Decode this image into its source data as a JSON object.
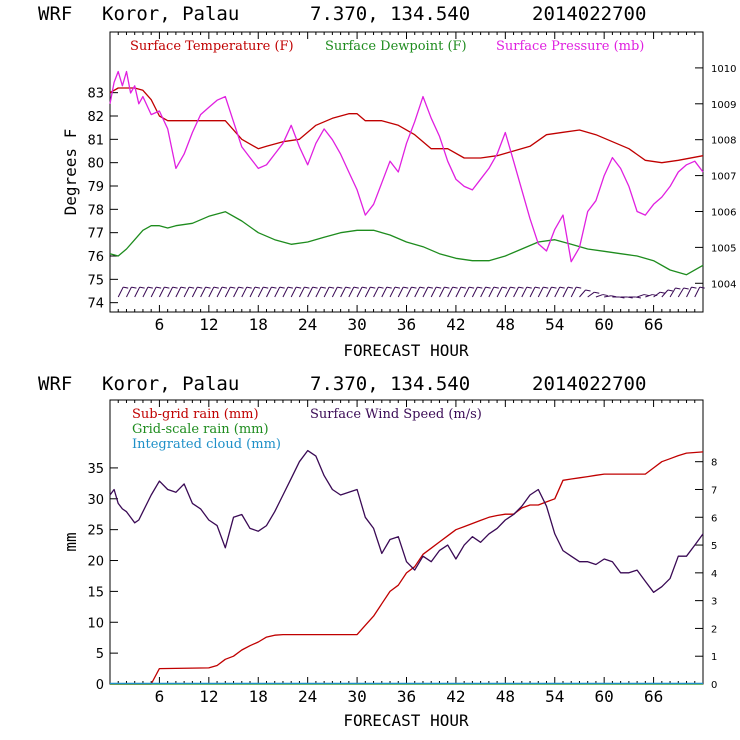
{
  "colors": {
    "temp": "#c00000",
    "dew": "#1e8c1e",
    "pres": "#e020e0",
    "subrain": "#c00000",
    "gridrain": "#1e8c1e",
    "cloud": "#1e90c8",
    "wind": "#3a0a55",
    "barb": "#3a0a55"
  },
  "chart_data": [
    {
      "type": "line",
      "header": {
        "model": "WRF",
        "place": "Koror, Palau",
        "coords": "7.370, 134.540",
        "run": "2014022700"
      },
      "xlabel": "FORECAST HOUR",
      "ylabel": "Degrees F",
      "xlim": [
        0,
        72
      ],
      "xticks": [
        "6",
        "12",
        "18",
        "24",
        "30",
        "36",
        "42",
        "48",
        "54",
        "60",
        "66"
      ],
      "ylim": [
        73.6,
        85.6
      ],
      "yticks": [
        "74",
        "75",
        "76",
        "77",
        "78",
        "79",
        "80",
        "81",
        "82",
        "83"
      ],
      "y2lim": [
        1003.2,
        1011.0
      ],
      "y2ticks": [
        "1004",
        "1005",
        "1006",
        "1007",
        "1008",
        "1009",
        "1010"
      ],
      "legend": [
        "Surface Temperature (F)",
        "Surface Dewpoint (F)",
        "Surface Pressure (mb)"
      ],
      "series": [
        {
          "name": "Surface Temperature (F)",
          "axis": "left",
          "x": [
            0,
            1,
            2,
            3,
            4,
            5,
            6,
            7,
            8,
            10,
            12,
            14,
            16,
            18,
            19,
            21,
            23,
            25,
            27,
            29,
            30,
            31,
            33,
            35,
            37,
            39,
            41,
            43,
            45,
            47,
            49,
            51,
            53,
            55,
            57,
            59,
            61,
            63,
            65,
            67,
            69,
            72
          ],
          "y": [
            83.0,
            83.2,
            83.2,
            83.2,
            83.1,
            82.7,
            82.0,
            81.8,
            81.8,
            81.8,
            81.8,
            81.8,
            81.0,
            80.6,
            80.7,
            80.9,
            81.0,
            81.6,
            81.9,
            82.1,
            82.1,
            81.8,
            81.8,
            81.6,
            81.2,
            80.6,
            80.6,
            80.2,
            80.2,
            80.3,
            80.5,
            80.7,
            81.2,
            81.3,
            81.4,
            81.2,
            80.9,
            80.6,
            80.1,
            80.0,
            80.1,
            80.3
          ]
        },
        {
          "name": "Surface Dewpoint (F)",
          "axis": "left",
          "x": [
            0,
            1,
            2,
            3,
            4,
            5,
            6,
            7,
            8,
            10,
            12,
            14,
            16,
            18,
            20,
            22,
            24,
            26,
            28,
            30,
            32,
            34,
            36,
            38,
            40,
            42,
            44,
            46,
            48,
            50,
            52,
            54,
            56,
            58,
            60,
            62,
            64,
            66,
            68,
            70,
            72
          ],
          "y": [
            76.1,
            76.0,
            76.3,
            76.7,
            77.1,
            77.3,
            77.3,
            77.2,
            77.3,
            77.4,
            77.7,
            77.9,
            77.5,
            77.0,
            76.7,
            76.5,
            76.6,
            76.8,
            77.0,
            77.1,
            77.1,
            76.9,
            76.6,
            76.4,
            76.1,
            75.9,
            75.8,
            75.8,
            76.0,
            76.3,
            76.6,
            76.7,
            76.5,
            76.3,
            76.2,
            76.1,
            76.0,
            75.8,
            75.4,
            75.2,
            75.6
          ]
        },
        {
          "name": "Surface Pressure (mb)",
          "axis": "right",
          "x": [
            0,
            0.5,
            1,
            1.5,
            2,
            2.5,
            3,
            3.5,
            4,
            5,
            6,
            7,
            8,
            9,
            10,
            11,
            12,
            13,
            14,
            15,
            16,
            17,
            18,
            19,
            20,
            21,
            22,
            23,
            24,
            25,
            26,
            27,
            28,
            29,
            30,
            31,
            32,
            33,
            34,
            35,
            36,
            37,
            38,
            39,
            40,
            41,
            42,
            43,
            44,
            45,
            46,
            47,
            48,
            49,
            50,
            51,
            52,
            53,
            54,
            55,
            56,
            57,
            58,
            59,
            60,
            61,
            62,
            63,
            64,
            65,
            66,
            67,
            68,
            69,
            70,
            71,
            72
          ],
          "y": [
            1009.0,
            1009.6,
            1009.9,
            1009.5,
            1009.9,
            1009.3,
            1009.5,
            1009.0,
            1009.2,
            1008.7,
            1008.8,
            1008.3,
            1007.2,
            1007.6,
            1008.2,
            1008.7,
            1008.9,
            1009.1,
            1009.2,
            1008.5,
            1007.8,
            1007.5,
            1007.2,
            1007.3,
            1007.6,
            1007.9,
            1008.4,
            1007.8,
            1007.3,
            1007.9,
            1008.3,
            1008.0,
            1007.6,
            1007.1,
            1006.6,
            1005.9,
            1006.2,
            1006.8,
            1007.4,
            1007.1,
            1007.9,
            1008.5,
            1009.2,
            1008.6,
            1008.1,
            1007.4,
            1006.9,
            1006.7,
            1006.6,
            1006.9,
            1007.2,
            1007.6,
            1008.2,
            1007.4,
            1006.6,
            1005.8,
            1005.1,
            1004.9,
            1005.5,
            1005.9,
            1004.6,
            1005.0,
            1006.0,
            1006.3,
            1007.0,
            1007.5,
            1007.2,
            1006.7,
            1006.0,
            1005.9,
            1006.2,
            1006.4,
            1006.7,
            1007.1,
            1007.3,
            1007.4,
            1007.1
          ]
        }
      ],
      "barbs": {
        "hours": [
          1,
          2,
          3,
          4,
          5,
          6,
          7,
          8,
          9,
          10,
          11,
          12,
          13,
          14,
          15,
          16,
          17,
          18,
          19,
          20,
          21,
          22,
          23,
          24,
          25,
          26,
          27,
          28,
          29,
          30,
          31,
          32,
          33,
          34,
          35,
          36,
          37,
          38,
          39,
          40,
          41,
          42,
          43,
          44,
          45,
          46,
          47,
          48,
          49,
          50,
          51,
          52,
          53,
          54,
          55,
          56,
          57,
          58,
          59,
          60,
          61,
          62,
          63,
          64,
          65,
          66,
          67,
          68,
          69,
          70,
          71
        ],
        "dir_deg": [
          45,
          45,
          45,
          45,
          45,
          45,
          45,
          45,
          45,
          45,
          45,
          45,
          45,
          45,
          45,
          45,
          45,
          45,
          45,
          45,
          45,
          45,
          45,
          45,
          45,
          45,
          45,
          45,
          45,
          45,
          45,
          45,
          45,
          45,
          45,
          45,
          45,
          45,
          45,
          45,
          45,
          45,
          45,
          45,
          45,
          45,
          45,
          45,
          45,
          45,
          45,
          45,
          45,
          45,
          45,
          45,
          60,
          70,
          80,
          85,
          90,
          90,
          90,
          80,
          80,
          70,
          60,
          50,
          50,
          45,
          45
        ]
      }
    },
    {
      "type": "line",
      "header": {
        "model": "WRF",
        "place": "Koror, Palau",
        "coords": "7.370, 134.540",
        "run": "2014022700"
      },
      "xlabel": "FORECAST HOUR",
      "ylabel": "mm",
      "xlim": [
        0,
        72
      ],
      "xticks": [
        "6",
        "12",
        "18",
        "24",
        "30",
        "36",
        "42",
        "48",
        "54",
        "60",
        "66"
      ],
      "ylim": [
        0,
        46
      ],
      "yticks": [
        "0",
        "5",
        "10",
        "15",
        "20",
        "25",
        "30",
        "35"
      ],
      "y2lim": [
        0,
        10.22
      ],
      "y2ticks": [
        "0",
        "1",
        "2",
        "3",
        "4",
        "5",
        "6",
        "7",
        "8"
      ],
      "legend": [
        "Sub-grid rain (mm)",
        "Grid-scale rain (mm)",
        "Integrated cloud (mm)",
        "Surface Wind Speed (m/s)"
      ],
      "series": [
        {
          "name": "Sub-grid rain (mm)",
          "axis": "left",
          "x": [
            0,
            5,
            6,
            12,
            13,
            14,
            15,
            16,
            17,
            18,
            19,
            20,
            21,
            22,
            23,
            24,
            25,
            26,
            27,
            28,
            29,
            30,
            31,
            32,
            33,
            34,
            35,
            36,
            37,
            38,
            39,
            40,
            41,
            42,
            43,
            44,
            45,
            46,
            47,
            48,
            49,
            50,
            51,
            52,
            53,
            54,
            55,
            56,
            57,
            58,
            59,
            60,
            61,
            62,
            63,
            64,
            65,
            66,
            67,
            68,
            69,
            70,
            71,
            72
          ],
          "y": [
            0,
            0,
            2.5,
            2.6,
            3.0,
            4.0,
            4.5,
            5.5,
            6.2,
            6.8,
            7.6,
            7.9,
            8.0,
            8.0,
            8.0,
            8.0,
            8.0,
            8.0,
            8.0,
            8.0,
            8.0,
            8.0,
            9.5,
            11,
            13,
            15,
            16,
            18,
            19,
            21,
            22,
            23,
            24,
            25,
            25.5,
            26,
            26.5,
            27,
            27.3,
            27.5,
            27.5,
            28.5,
            29,
            29,
            29.5,
            30,
            33,
            33.2,
            33.4,
            33.6,
            33.8,
            34,
            34,
            34,
            34,
            34,
            34,
            35,
            36,
            36.5,
            37,
            37.4,
            37.5,
            37.6
          ]
        },
        {
          "name": "Grid-scale rain (mm)",
          "axis": "left",
          "x": [
            0,
            72
          ],
          "y": [
            0,
            0
          ]
        },
        {
          "name": "Integrated cloud (mm)",
          "axis": "left",
          "x": [
            0,
            72
          ],
          "y": [
            0.1,
            0.1
          ]
        },
        {
          "name": "Surface Wind Speed (m/s)",
          "axis": "right",
          "x": [
            0,
            0.5,
            1,
            1.5,
            2,
            2.5,
            3,
            3.5,
            4,
            5,
            6,
            7,
            8,
            9,
            10,
            11,
            12,
            13,
            14,
            15,
            16,
            17,
            18,
            19,
            20,
            21,
            22,
            23,
            24,
            25,
            26,
            27,
            28,
            29,
            30,
            31,
            32,
            33,
            34,
            35,
            36,
            37,
            38,
            39,
            40,
            41,
            42,
            43,
            44,
            45,
            46,
            47,
            48,
            49,
            50,
            51,
            52,
            53,
            54,
            55,
            56,
            57,
            58,
            59,
            60,
            61,
            62,
            63,
            64,
            65,
            66,
            67,
            68,
            69,
            70,
            71,
            72
          ],
          "y": [
            6.8,
            7.0,
            6.5,
            6.3,
            6.2,
            6.0,
            5.8,
            5.9,
            6.2,
            6.8,
            7.3,
            7.0,
            6.9,
            7.2,
            6.5,
            6.3,
            5.9,
            5.7,
            4.9,
            6.0,
            6.1,
            5.6,
            5.5,
            5.7,
            6.2,
            6.8,
            7.4,
            8.0,
            8.4,
            8.2,
            7.5,
            7.0,
            6.8,
            6.9,
            7.0,
            6.0,
            5.6,
            4.7,
            5.2,
            5.3,
            4.4,
            4.1,
            4.6,
            4.4,
            4.8,
            5.0,
            4.5,
            5.0,
            5.3,
            5.1,
            5.4,
            5.6,
            5.9,
            6.1,
            6.4,
            6.8,
            7.0,
            6.4,
            5.4,
            4.8,
            4.6,
            4.4,
            4.4,
            4.3,
            4.5,
            4.4,
            4.0,
            4.0,
            4.1,
            3.7,
            3.3,
            3.5,
            3.8,
            4.6,
            4.6,
            5.0,
            5.4
          ]
        }
      ]
    }
  ]
}
